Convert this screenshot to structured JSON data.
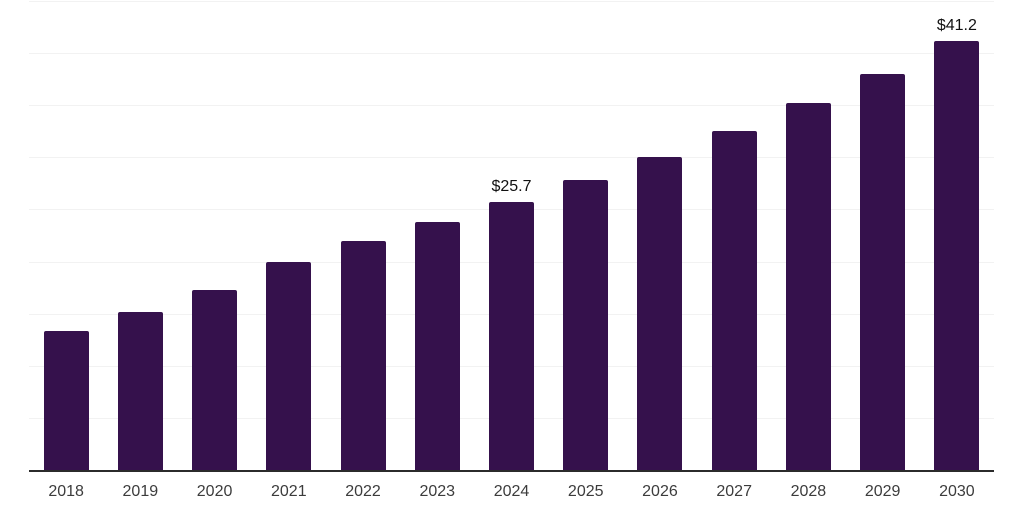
{
  "chart_data": {
    "type": "bar",
    "title": "",
    "xlabel": "",
    "ylabel": "",
    "categories": [
      "2018",
      "2019",
      "2020",
      "2021",
      "2022",
      "2023",
      "2024",
      "2025",
      "2026",
      "2027",
      "2028",
      "2029",
      "2030"
    ],
    "values": [
      13.3,
      15.2,
      17.3,
      20.0,
      22.0,
      23.8,
      25.7,
      27.8,
      30.0,
      32.5,
      35.2,
      38.0,
      41.2
    ],
    "data_labels": [
      {
        "category": "2024",
        "text": "$25.7"
      },
      {
        "category": "2030",
        "text": "$41.2"
      }
    ],
    "ylim": [
      0,
      45
    ],
    "gridline_step": 5,
    "grid": true,
    "legend": false,
    "y_axis_tick_labels_visible": false,
    "colors": {
      "bar": "#35114C",
      "axis_line": "#2b2b2b",
      "gridline": "#f2f2f2",
      "tick_label": "#3c3c3c",
      "data_label": "#111111",
      "background": "#ffffff"
    }
  }
}
